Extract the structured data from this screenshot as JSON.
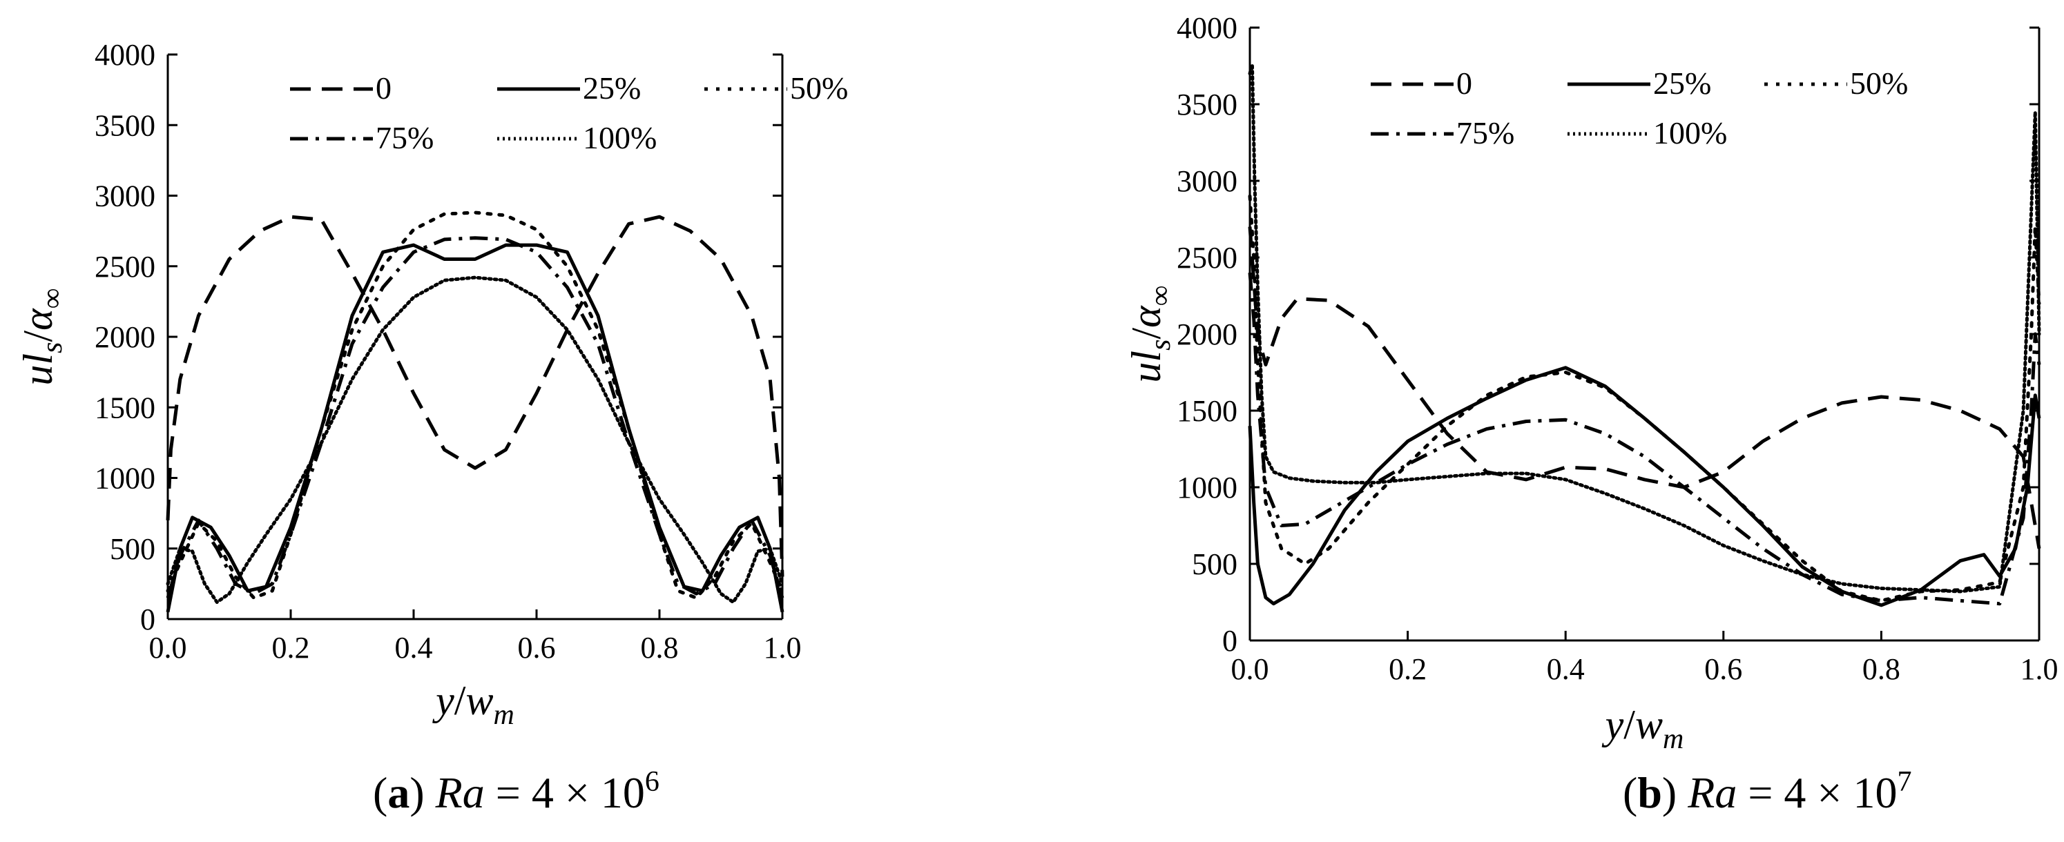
{
  "chart_data": [
    {
      "panel": "a",
      "type": "line",
      "caption": {
        "letter": "a",
        "var": "Ra",
        "text": " = 4 × 10",
        "exp": "6"
      },
      "xlabel": {
        "main": "y",
        "slash": "/",
        "var": "w",
        "sub": "m"
      },
      "ylabel": {
        "main": "ul",
        "sub": "s",
        "slash": "/",
        "var": "α",
        "sub2": "∞"
      },
      "xlim": [
        0,
        1
      ],
      "ylim": [
        0,
        4000
      ],
      "xticks": [
        0.0,
        0.2,
        0.4,
        0.6,
        0.8,
        1.0
      ],
      "xtick_labels": [
        "0.0",
        "0.2",
        "0.4",
        "0.6",
        "0.8",
        "1.0"
      ],
      "yticks": [
        0,
        500,
        1000,
        1500,
        2000,
        2500,
        3000,
        3500,
        4000
      ],
      "ytick_labels": [
        "0",
        "500",
        "1000",
        "1500",
        "2000",
        "2500",
        "3000",
        "3500",
        "4000"
      ],
      "legend_position": "top",
      "series": [
        {
          "name": "0",
          "style": "dash",
          "x": [
            0,
            0.005,
            0.02,
            0.05,
            0.1,
            0.15,
            0.2,
            0.25,
            0.3,
            0.35,
            0.4,
            0.45,
            0.5,
            0.55,
            0.6,
            0.65,
            0.7,
            0.75,
            0.8,
            0.85,
            0.9,
            0.95,
            0.98,
            0.995,
            1.0
          ],
          "y": [
            700,
            1200,
            1700,
            2150,
            2550,
            2750,
            2850,
            2830,
            2450,
            2050,
            1600,
            1200,
            1070,
            1200,
            1600,
            2050,
            2450,
            2800,
            2850,
            2750,
            2550,
            2150,
            1700,
            1000,
            300
          ]
        },
        {
          "name": "25%",
          "style": "solid",
          "x": [
            0,
            0.02,
            0.04,
            0.07,
            0.1,
            0.13,
            0.16,
            0.2,
            0.25,
            0.3,
            0.35,
            0.4,
            0.45,
            0.5,
            0.55,
            0.6,
            0.65,
            0.7,
            0.75,
            0.8,
            0.84,
            0.87,
            0.9,
            0.93,
            0.96,
            0.98,
            1.0
          ],
          "y": [
            50,
            500,
            720,
            650,
            450,
            200,
            230,
            650,
            1350,
            2150,
            2600,
            2650,
            2550,
            2550,
            2650,
            2650,
            2600,
            2150,
            1350,
            650,
            230,
            200,
            450,
            650,
            720,
            500,
            50
          ]
        },
        {
          "name": "50%",
          "style": "dot",
          "x": [
            0,
            0.02,
            0.05,
            0.08,
            0.11,
            0.14,
            0.17,
            0.2,
            0.25,
            0.3,
            0.35,
            0.4,
            0.45,
            0.5,
            0.55,
            0.6,
            0.65,
            0.7,
            0.75,
            0.8,
            0.83,
            0.86,
            0.89,
            0.92,
            0.95,
            0.98,
            1.0
          ],
          "y": [
            200,
            400,
            680,
            550,
            300,
            150,
            200,
            600,
            1350,
            2050,
            2500,
            2760,
            2870,
            2880,
            2860,
            2760,
            2500,
            2050,
            1350,
            600,
            200,
            150,
            300,
            550,
            680,
            400,
            200
          ]
        },
        {
          "name": "75%",
          "style": "dashdot",
          "x": [
            0,
            0.02,
            0.05,
            0.08,
            0.11,
            0.14,
            0.17,
            0.2,
            0.25,
            0.3,
            0.35,
            0.4,
            0.45,
            0.5,
            0.55,
            0.6,
            0.65,
            0.7,
            0.75,
            0.8,
            0.83,
            0.86,
            0.89,
            0.92,
            0.95,
            0.98,
            1.0
          ],
          "y": [
            150,
            450,
            700,
            500,
            250,
            180,
            250,
            600,
            1250,
            1950,
            2350,
            2600,
            2690,
            2700,
            2690,
            2600,
            2350,
            1950,
            1250,
            600,
            250,
            180,
            250,
            500,
            700,
            450,
            150
          ]
        },
        {
          "name": "100%",
          "style": "densedot",
          "x": [
            0,
            0.02,
            0.04,
            0.06,
            0.08,
            0.1,
            0.13,
            0.16,
            0.2,
            0.25,
            0.3,
            0.35,
            0.4,
            0.45,
            0.5,
            0.55,
            0.6,
            0.65,
            0.7,
            0.75,
            0.8,
            0.84,
            0.87,
            0.9,
            0.92,
            0.94,
            0.96,
            0.98,
            1.0
          ],
          "y": [
            250,
            500,
            480,
            250,
            120,
            180,
            400,
            600,
            850,
            1250,
            1700,
            2050,
            2280,
            2400,
            2420,
            2400,
            2280,
            2050,
            1700,
            1250,
            850,
            600,
            400,
            180,
            120,
            250,
            480,
            500,
            250
          ]
        }
      ]
    },
    {
      "panel": "b",
      "type": "line",
      "caption": {
        "letter": "b",
        "var": "Ra",
        "text": " = 4 × 10",
        "exp": "7"
      },
      "xlabel": {
        "main": "y",
        "slash": "/",
        "var": "w",
        "sub": "m"
      },
      "ylabel": {
        "main": "ul",
        "sub": "s",
        "slash": "/",
        "var": "α",
        "sub2": "∞"
      },
      "xlim": [
        0,
        1
      ],
      "ylim": [
        0,
        4000
      ],
      "xticks": [
        0.0,
        0.2,
        0.4,
        0.6,
        0.8,
        1.0
      ],
      "xtick_labels": [
        "0.0",
        "0.2",
        "0.4",
        "0.6",
        "0.8",
        "1.0"
      ],
      "yticks": [
        0,
        500,
        1000,
        1500,
        2000,
        2500,
        3000,
        3500,
        4000
      ],
      "ytick_labels": [
        "0",
        "500",
        "1000",
        "1500",
        "2000",
        "2500",
        "3000",
        "3500",
        "4000"
      ],
      "legend_position": "top",
      "series": [
        {
          "name": "0",
          "style": "dash",
          "x": [
            0,
            0.01,
            0.02,
            0.04,
            0.06,
            0.1,
            0.15,
            0.2,
            0.25,
            0.3,
            0.35,
            0.4,
            0.45,
            0.5,
            0.55,
            0.6,
            0.65,
            0.7,
            0.75,
            0.8,
            0.85,
            0.9,
            0.95,
            0.98,
            0.99,
            1.0
          ],
          "y": [
            2700,
            2000,
            1800,
            2100,
            2230,
            2220,
            2050,
            1700,
            1350,
            1100,
            1050,
            1130,
            1120,
            1050,
            1000,
            1100,
            1300,
            1450,
            1550,
            1590,
            1570,
            1500,
            1380,
            1200,
            900,
            600
          ]
        },
        {
          "name": "25%",
          "style": "solid",
          "x": [
            0,
            0.005,
            0.01,
            0.02,
            0.03,
            0.05,
            0.08,
            0.12,
            0.16,
            0.2,
            0.25,
            0.3,
            0.35,
            0.4,
            0.45,
            0.5,
            0.55,
            0.6,
            0.65,
            0.7,
            0.75,
            0.8,
            0.85,
            0.9,
            0.93,
            0.95,
            0.97,
            0.985,
            0.995,
            1.0
          ],
          "y": [
            1400,
            900,
            500,
            280,
            240,
            300,
            500,
            850,
            1100,
            1300,
            1450,
            1580,
            1700,
            1780,
            1660,
            1450,
            1230,
            1000,
            750,
            480,
            320,
            230,
            330,
            520,
            560,
            420,
            600,
            1000,
            1600,
            1450
          ]
        },
        {
          "name": "50%",
          "style": "dot",
          "x": [
            0,
            0.005,
            0.01,
            0.02,
            0.04,
            0.07,
            0.1,
            0.15,
            0.2,
            0.25,
            0.3,
            0.35,
            0.4,
            0.45,
            0.5,
            0.55,
            0.6,
            0.65,
            0.7,
            0.75,
            0.8,
            0.85,
            0.9,
            0.95,
            0.98,
            0.99,
            0.995,
            1.0
          ],
          "y": [
            2900,
            2500,
            1800,
            900,
            600,
            500,
            600,
            900,
            1150,
            1400,
            1600,
            1720,
            1750,
            1650,
            1450,
            1230,
            1000,
            760,
            520,
            320,
            260,
            320,
            330,
            380,
            1000,
            2000,
            2700,
            2200
          ]
        },
        {
          "name": "75%",
          "style": "dashdot",
          "x": [
            0,
            0.005,
            0.01,
            0.02,
            0.04,
            0.07,
            0.1,
            0.15,
            0.2,
            0.25,
            0.3,
            0.35,
            0.4,
            0.45,
            0.5,
            0.55,
            0.6,
            0.65,
            0.7,
            0.75,
            0.8,
            0.85,
            0.9,
            0.95,
            0.98,
            0.99,
            0.995,
            1.0
          ],
          "y": [
            2400,
            2100,
            1600,
            1000,
            750,
            760,
            850,
            1000,
            1150,
            1280,
            1380,
            1430,
            1440,
            1350,
            1200,
            1000,
            800,
            600,
            430,
            300,
            260,
            280,
            260,
            240,
            800,
            1500,
            2000,
            1800
          ]
        },
        {
          "name": "100%",
          "style": "densedot",
          "x": [
            0,
            0.003,
            0.006,
            0.01,
            0.015,
            0.02,
            0.03,
            0.05,
            0.08,
            0.12,
            0.16,
            0.2,
            0.25,
            0.3,
            0.35,
            0.4,
            0.45,
            0.5,
            0.55,
            0.6,
            0.65,
            0.7,
            0.75,
            0.8,
            0.85,
            0.9,
            0.95,
            0.98,
            0.99,
            0.995,
            1.0
          ],
          "y": [
            3700,
            3760,
            3000,
            2300,
            1600,
            1200,
            1100,
            1060,
            1040,
            1030,
            1030,
            1050,
            1070,
            1090,
            1090,
            1050,
            960,
            860,
            750,
            620,
            520,
            430,
            370,
            340,
            330,
            320,
            350,
            1500,
            2800,
            3450,
            2000
          ]
        }
      ]
    }
  ]
}
